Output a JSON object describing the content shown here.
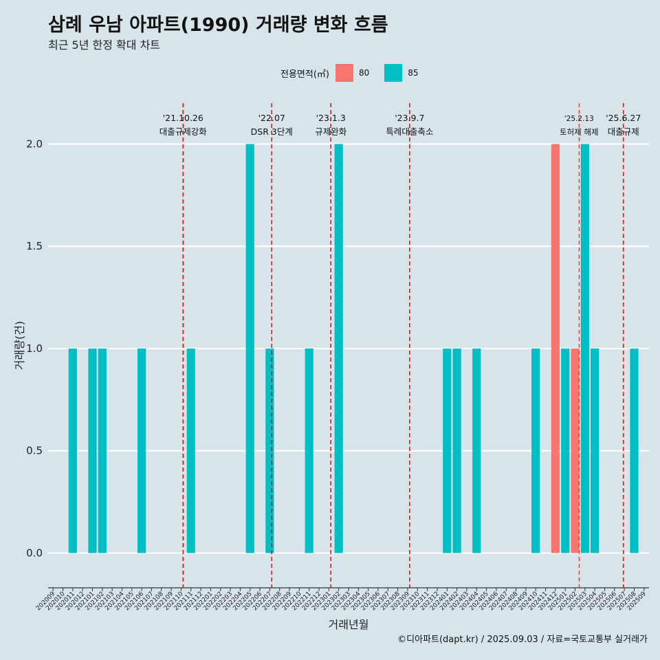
{
  "header": {
    "title": "삼례 우남 아파트(1990) 거래량 변화 흐름",
    "subtitle": "최근 5년 한정 확대 차트"
  },
  "legend": {
    "title": "전용면적(㎡)",
    "items": [
      {
        "label": "80",
        "color": "#f8766d"
      },
      {
        "label": "85",
        "color": "#00bfc4"
      }
    ]
  },
  "caption": "©디아파트(dapt.kr) / 2025.09.03 / 자료=국토교통부 실거래가",
  "chart_data": {
    "type": "bar",
    "xlabel": "거래년월",
    "ylabel": "거래량(건)",
    "ylim": [
      -0.17,
      2.2
    ],
    "yticks": [
      0.0,
      0.5,
      1.0,
      1.5,
      2.0
    ],
    "ytick_labels": [
      "0.0",
      "0.5",
      "1.0",
      "1.5",
      "2.0"
    ],
    "grid": true,
    "legend_position": "top",
    "categories": [
      "202009",
      "202010",
      "202011",
      "202012",
      "202101",
      "202102",
      "202103",
      "202104",
      "202105",
      "202106",
      "202107",
      "202108",
      "202109",
      "202110",
      "202111",
      "202112",
      "202201",
      "202202",
      "202203",
      "202204",
      "202205",
      "202206",
      "202207",
      "202208",
      "202209",
      "202210",
      "202211",
      "202212",
      "202301",
      "202302",
      "202303",
      "202304",
      "202305",
      "202306",
      "202307",
      "202308",
      "202309",
      "202310",
      "202311",
      "202312",
      "202401",
      "202402",
      "202403",
      "202404",
      "202405",
      "202406",
      "202407",
      "202408",
      "202409",
      "202410",
      "202411",
      "202412",
      "202501",
      "202502",
      "202503",
      "202504",
      "202505",
      "202506",
      "202507",
      "202508",
      "202509"
    ],
    "series": [
      {
        "name": "80",
        "color": "#f8766d",
        "values": [
          0,
          0,
          0,
          0,
          0,
          0,
          0,
          0,
          0,
          0,
          0,
          0,
          0,
          0,
          0,
          0,
          0,
          0,
          0,
          0,
          0,
          0,
          0,
          0,
          0,
          0,
          0,
          0,
          0,
          0,
          0,
          0,
          0,
          0,
          0,
          0,
          0,
          0,
          0,
          0,
          0,
          0,
          0,
          0,
          0,
          0,
          0,
          0,
          0,
          0,
          0,
          2,
          0,
          1,
          0,
          0,
          0,
          0,
          0,
          0,
          0
        ]
      },
      {
        "name": "85",
        "color": "#00bfc4",
        "values": [
          0,
          0,
          1,
          0,
          1,
          1,
          0,
          0,
          0,
          1,
          0,
          0,
          0,
          0,
          1,
          0,
          0,
          0,
          0,
          0,
          2,
          0,
          1,
          0,
          0,
          0,
          1,
          0,
          0,
          2,
          0,
          0,
          0,
          0,
          0,
          0,
          0,
          0,
          0,
          0,
          1,
          1,
          0,
          1,
          0,
          0,
          0,
          0,
          0,
          1,
          0,
          0,
          1,
          0,
          2,
          1,
          0,
          0,
          0,
          1,
          0
        ]
      }
    ],
    "events": [
      {
        "label_top": "'21.10.26",
        "label_bottom": "대출규제강화",
        "x": 13.2,
        "size": "normal"
      },
      {
        "label_top": "'22.07",
        "label_bottom": "DSR 3단계",
        "x": 22.2,
        "size": "normal"
      },
      {
        "label_top": "'23.1.3",
        "label_bottom": "규제완화",
        "x": 28.2,
        "size": "normal"
      },
      {
        "label_top": "'23.9.7",
        "label_bottom": "특례대출축소",
        "x": 36.2,
        "size": "normal"
      },
      {
        "label_top": "'25.2.13",
        "label_bottom": "토허제 해제",
        "x": 53.4,
        "size": "small"
      },
      {
        "label_top": "'25.6.27",
        "label_bottom": "대출규제",
        "x": 57.9,
        "size": "normal"
      }
    ]
  }
}
